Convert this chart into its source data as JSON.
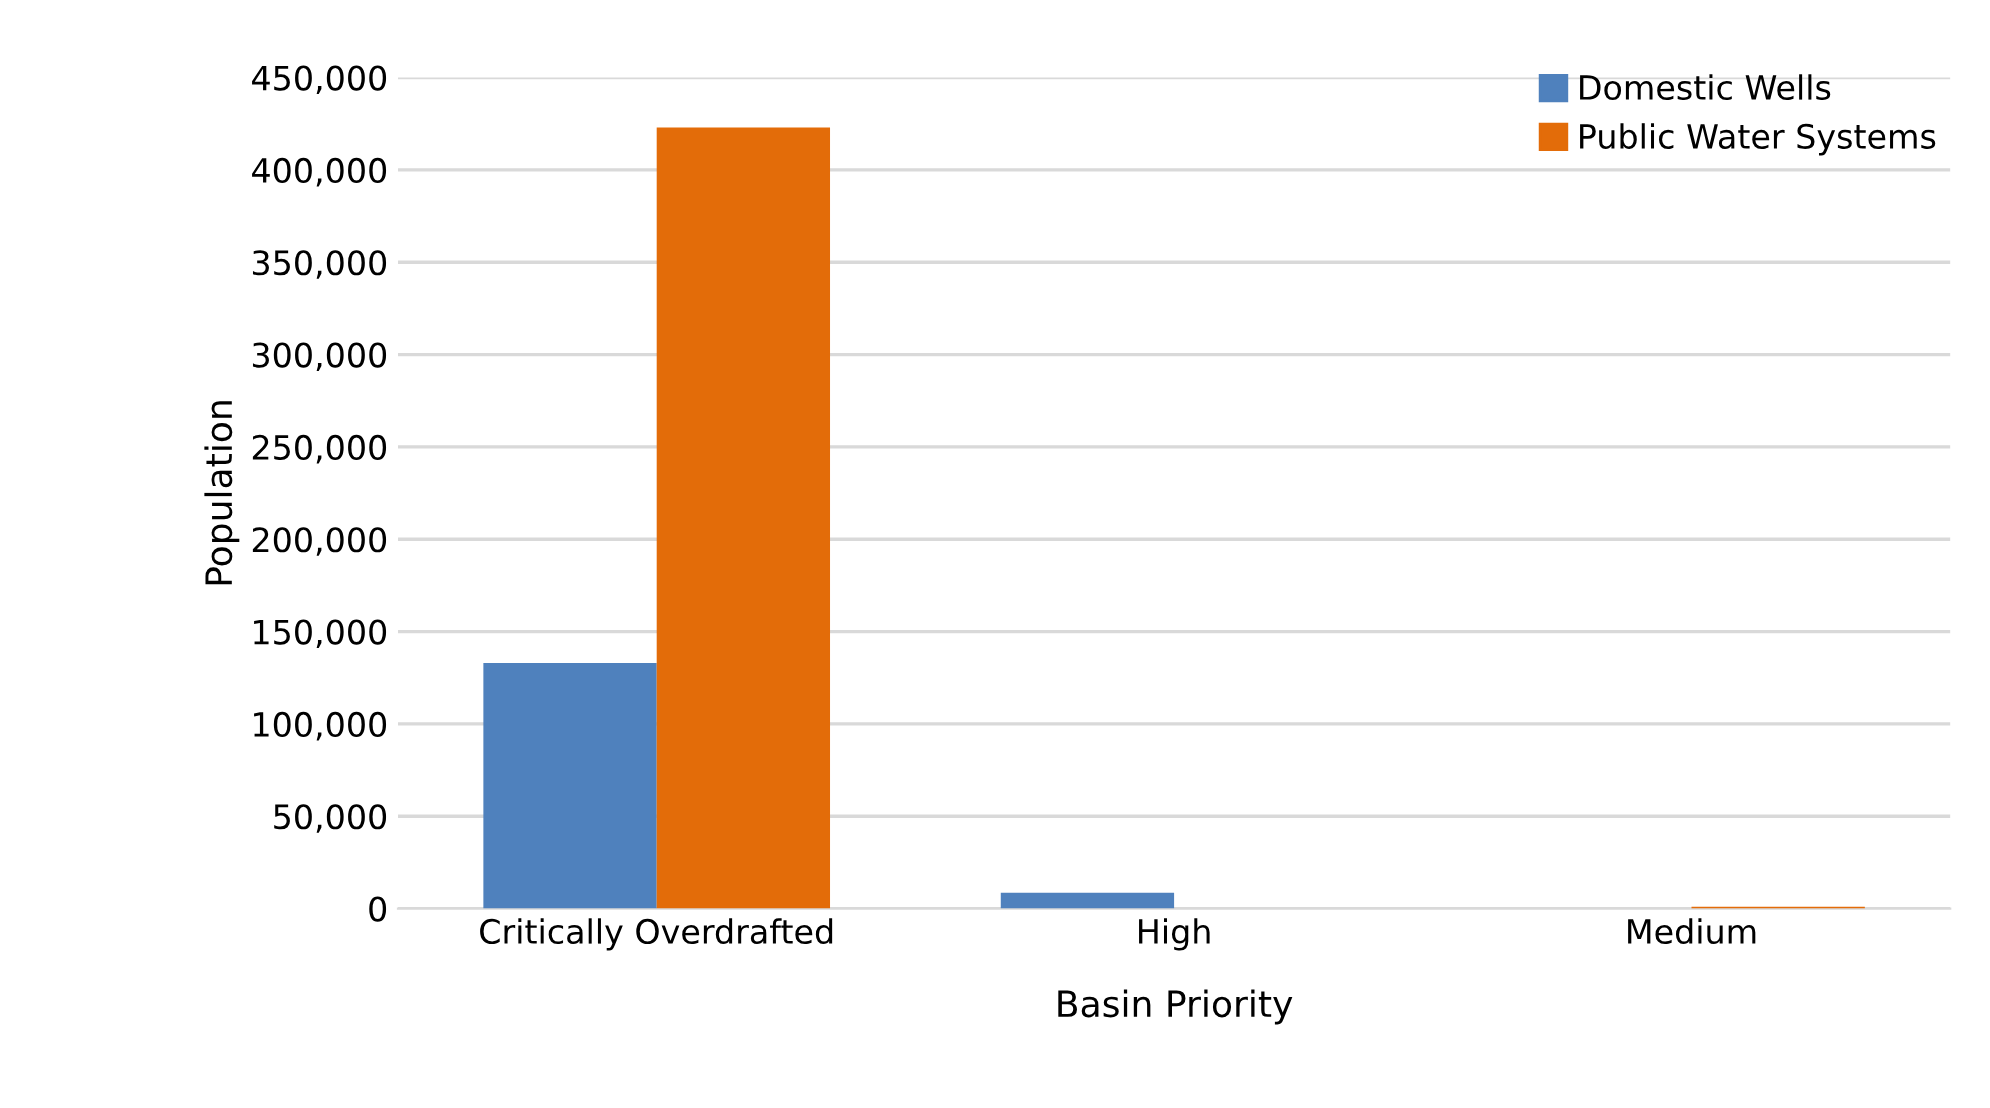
{
  "chart_data": {
    "type": "bar",
    "xlabel": "Basin Priority",
    "ylabel": "Population",
    "categories": [
      "Critically Overdrafted",
      "High",
      "Medium"
    ],
    "series": [
      {
        "name": "Domestic Wells",
        "color": "#4f81bd",
        "values": [
          133000,
          8500,
          0
        ]
      },
      {
        "name": "Public Water Systems",
        "color": "#e36c09",
        "values": [
          423000,
          0,
          1000
        ]
      }
    ],
    "ylim": [
      0,
      450000
    ],
    "yticks": [
      {
        "value": 0,
        "label": "0"
      },
      {
        "value": 50000,
        "label": "50,000"
      },
      {
        "value": 100000,
        "label": "100,000"
      },
      {
        "value": 150000,
        "label": "150,000"
      },
      {
        "value": 200000,
        "label": "200,000"
      },
      {
        "value": 250000,
        "label": "250,000"
      },
      {
        "value": 300000,
        "label": "300,000"
      },
      {
        "value": 350000,
        "label": "350,000"
      },
      {
        "value": 400000,
        "label": "400,000"
      },
      {
        "value": 450000,
        "label": "450,000"
      }
    ],
    "grid": "y",
    "legend": "top right"
  }
}
